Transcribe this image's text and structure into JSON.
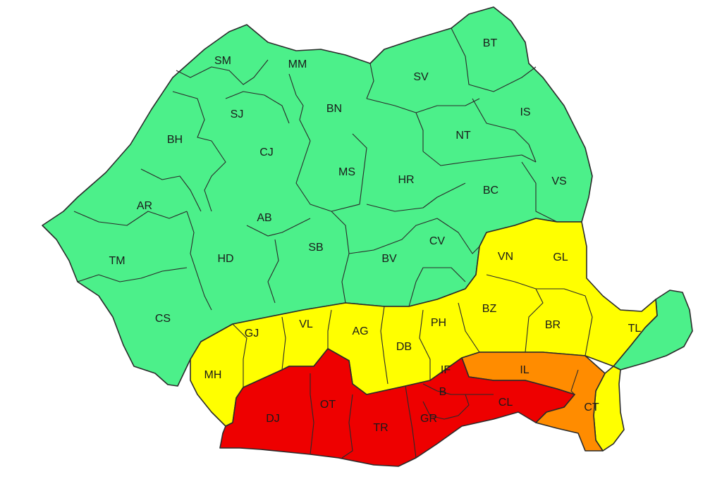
{
  "colors": {
    "green": "#4cf08a",
    "yellow": "#ffff00",
    "orange": "#ff8c00",
    "red": "#ee0000"
  },
  "counties": [
    {
      "code": "SM",
      "level": "green"
    },
    {
      "code": "MM",
      "level": "green"
    },
    {
      "code": "BT",
      "level": "green"
    },
    {
      "code": "SV",
      "level": "green"
    },
    {
      "code": "SJ",
      "level": "green"
    },
    {
      "code": "BN",
      "level": "green"
    },
    {
      "code": "IS",
      "level": "green"
    },
    {
      "code": "BH",
      "level": "green"
    },
    {
      "code": "NT",
      "level": "green"
    },
    {
      "code": "CJ",
      "level": "green"
    },
    {
      "code": "MS",
      "level": "green"
    },
    {
      "code": "HR",
      "level": "green"
    },
    {
      "code": "BC",
      "level": "green"
    },
    {
      "code": "VS",
      "level": "green"
    },
    {
      "code": "AR",
      "level": "green"
    },
    {
      "code": "AB",
      "level": "green"
    },
    {
      "code": "TM",
      "level": "green"
    },
    {
      "code": "HD",
      "level": "green"
    },
    {
      "code": "SB",
      "level": "green"
    },
    {
      "code": "BV",
      "level": "green"
    },
    {
      "code": "CV",
      "level": "green"
    },
    {
      "code": "CS",
      "level": "green"
    },
    {
      "code": "VN",
      "level": "yellow"
    },
    {
      "code": "GL",
      "level": "yellow"
    },
    {
      "code": "BZ",
      "level": "yellow"
    },
    {
      "code": "BR",
      "level": "yellow"
    },
    {
      "code": "TL",
      "level": "yellow"
    },
    {
      "code": "GJ",
      "level": "yellow"
    },
    {
      "code": "VL",
      "level": "yellow"
    },
    {
      "code": "AG",
      "level": "yellow"
    },
    {
      "code": "PH",
      "level": "yellow"
    },
    {
      "code": "DB",
      "level": "yellow"
    },
    {
      "code": "MH",
      "level": "yellow"
    },
    {
      "code": "IL",
      "level": "orange"
    },
    {
      "code": "CT",
      "level": "orange"
    },
    {
      "code": "IF",
      "level": "red"
    },
    {
      "code": "B",
      "level": "red"
    },
    {
      "code": "CL",
      "level": "red"
    },
    {
      "code": "DJ",
      "level": "red"
    },
    {
      "code": "OT",
      "level": "red"
    },
    {
      "code": "TR",
      "level": "red"
    },
    {
      "code": "GR",
      "level": "red"
    }
  ]
}
